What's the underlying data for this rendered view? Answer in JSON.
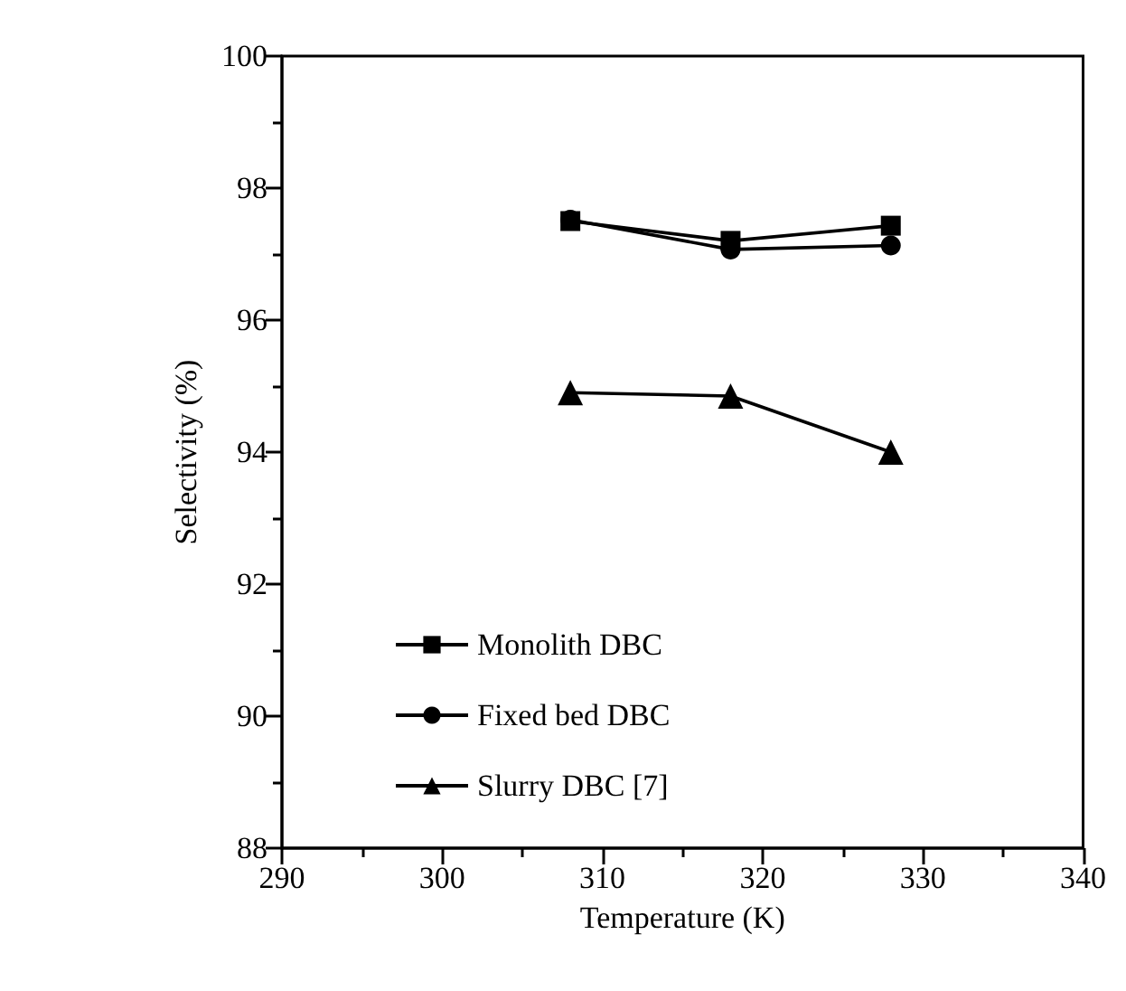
{
  "chart_data": {
    "type": "line",
    "xlabel": "Temperature (K)",
    "ylabel": "Selectivity (%)",
    "xlim": [
      290,
      340
    ],
    "xticks": [
      290,
      300,
      310,
      320,
      330,
      340
    ],
    "ylim": [
      88,
      100
    ],
    "yticks": [
      88,
      90,
      92,
      94,
      96,
      98,
      100
    ],
    "x": [
      308,
      318,
      328
    ],
    "grid": false,
    "legend": "left",
    "line_style": "solid",
    "series": [
      {
        "name": "Monolith DBC",
        "color": "#000000",
        "marker": "square",
        "values": [
          97.5,
          97.2,
          97.43
        ]
      },
      {
        "name": "Fixed bed DBC",
        "color": "#000000",
        "marker": "circle",
        "values": [
          97.52,
          97.07,
          97.13
        ]
      },
      {
        "name": "Slurry DBC [7]",
        "color": "#000000",
        "marker": "triangle",
        "values": [
          94.9,
          94.85,
          94.0
        ]
      }
    ]
  }
}
